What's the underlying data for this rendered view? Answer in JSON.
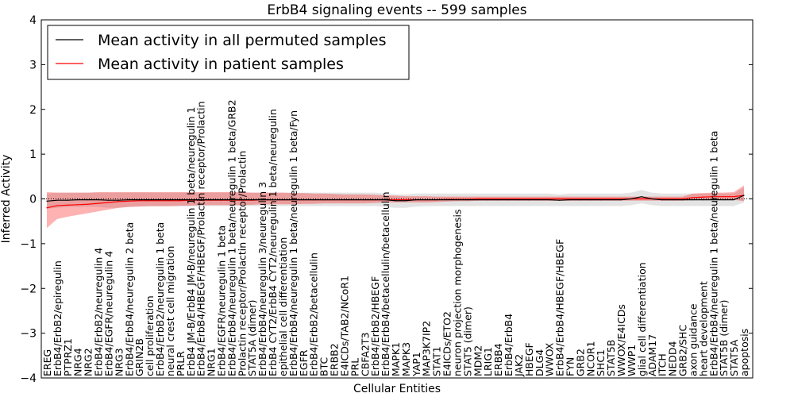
{
  "chart_data": {
    "type": "line",
    "title": "ErbB4 signaling events -- 599 samples",
    "xlabel": "Cellular Entities",
    "ylabel": "Inferred Activity",
    "ylim": [
      -4,
      4
    ],
    "yticks": [
      -4,
      -3,
      -2,
      -1,
      0,
      1,
      2,
      3,
      4
    ],
    "legend_position": "top-left",
    "categories": [
      "EREG",
      "ErbB4/ErbB2/epiregulin",
      "PTPRZ1",
      "NRG4",
      "NRG2",
      "ErbB4/ErbB2/neuregulin 4",
      "ErbB4/EGFR/neuregulin 4",
      "NRG3",
      "ErbB4/ErbB4/neuregulin 2 beta",
      "GRIN2B",
      "cell proliferation",
      "ErbB4/ErbB2/neuregulin 1 beta",
      "neural crest cell migration",
      "PRLR",
      "ErbB4 JM-B/ErbB4 JM-B/neuregulin 1 beta/neuregulin 1",
      "ErbB4/ErbB4/HBEGF/HBEGF/Prolactin receptor/Prolactin",
      "NRG1",
      "ErbB4/EGFR/neuregulin 1 beta",
      "ErbB4/ErbB4/neuregulin 1 beta/neuregulin 1 beta/GRB2",
      "Prolactin receptor/Prolactin receptor/Prolactin",
      "STAT5A (dimer)",
      "ErbB4/ErbB4/neuregulin 3/neuregulin 3",
      "ErbB4 CYT2/ErbB4 CYT2/neuregulin 1 beta/neuregulin",
      "epithelial cell differentiation",
      "ErbB4/ErbB4/neuregulin 1 beta/neuregulin 1 beta/Fyn",
      "EGFR",
      "ErbB4/ErbB2/betacellulin",
      "BTC",
      "ERBB2",
      "E4ICDs/TAB2/NCoR1",
      "PRL",
      "CBFA2T3",
      "ErbB4/ErbB2/HBEGF",
      "ErbB4/ErbB4/betacellulin/betacellulin",
      "MAPK1",
      "MAPK3",
      "YAP1",
      "MAP3K7IP2",
      "STAT1",
      "E4ICDs/ETO2",
      "neuron projection morphogenesis",
      "STAT5 (dimer)",
      "MDM2",
      "LRIG1",
      "ERBB4",
      "ErbB4/ErbB4",
      "JAK2",
      "HBEGF",
      "DLG4",
      "WWOX",
      "ErbB4/ErbB4/HBEGF/HBEGF",
      "FYN",
      "GRB2",
      "NCOR1",
      "SHC1",
      "STAT5B",
      "WWOX/E4ICDs",
      "WWP1",
      "glial cell differentiation",
      "ADAM17",
      "ITCH",
      "NEDD4",
      "GRB2/SHC",
      "axon guidance",
      "heart development",
      "ErbB4/ErbB4/neuregulin 1 beta/neuregulin 1 beta",
      "STAT5B (dimer)",
      "STAT5A",
      "apoptosis"
    ],
    "series": [
      {
        "name": "Mean activity in all permuted samples",
        "color": "#000000",
        "values": [
          -0.05,
          -0.03,
          -0.03,
          -0.02,
          -0.02,
          -0.02,
          -0.03,
          -0.03,
          -0.02,
          -0.02,
          -0.02,
          -0.02,
          -0.02,
          -0.02,
          -0.02,
          -0.02,
          -0.02,
          -0.02,
          -0.02,
          -0.02,
          -0.02,
          -0.02,
          -0.02,
          -0.02,
          -0.02,
          -0.02,
          -0.02,
          -0.02,
          -0.02,
          -0.02,
          -0.02,
          -0.02,
          -0.02,
          -0.02,
          -0.04,
          -0.04,
          -0.02,
          -0.02,
          -0.02,
          -0.02,
          -0.02,
          -0.02,
          -0.02,
          -0.02,
          -0.02,
          -0.02,
          -0.02,
          -0.02,
          -0.02,
          -0.02,
          -0.03,
          -0.02,
          -0.02,
          -0.02,
          -0.02,
          -0.02,
          -0.02,
          0.0,
          0.05,
          0.0,
          -0.02,
          -0.02,
          -0.02,
          -0.02,
          -0.02,
          -0.02,
          -0.02,
          -0.02,
          0.08
        ],
        "lower": [
          -0.22,
          -0.2,
          -0.18,
          -0.18,
          -0.17,
          -0.18,
          -0.2,
          -0.2,
          -0.18,
          -0.17,
          -0.17,
          -0.17,
          -0.17,
          -0.17,
          -0.17,
          -0.17,
          -0.16,
          -0.16,
          -0.16,
          -0.16,
          -0.16,
          -0.16,
          -0.16,
          -0.16,
          -0.16,
          -0.16,
          -0.16,
          -0.16,
          -0.16,
          -0.16,
          -0.16,
          -0.16,
          -0.16,
          -0.18,
          -0.2,
          -0.2,
          -0.17,
          -0.16,
          -0.16,
          -0.16,
          -0.16,
          -0.16,
          -0.16,
          -0.16,
          -0.16,
          -0.16,
          -0.16,
          -0.16,
          -0.16,
          -0.16,
          -0.16,
          -0.16,
          -0.16,
          -0.16,
          -0.16,
          -0.16,
          -0.16,
          -0.14,
          -0.1,
          -0.14,
          -0.16,
          -0.16,
          -0.16,
          -0.16,
          -0.16,
          -0.16,
          -0.16,
          -0.16,
          -0.08
        ],
        "upper": [
          0.12,
          0.14,
          0.14,
          0.14,
          0.14,
          0.14,
          0.14,
          0.14,
          0.14,
          0.14,
          0.14,
          0.14,
          0.14,
          0.14,
          0.14,
          0.14,
          0.14,
          0.14,
          0.14,
          0.14,
          0.14,
          0.14,
          0.14,
          0.14,
          0.14,
          0.14,
          0.14,
          0.14,
          0.14,
          0.14,
          0.14,
          0.14,
          0.14,
          0.12,
          0.1,
          0.1,
          0.12,
          0.12,
          0.12,
          0.12,
          0.12,
          0.12,
          0.12,
          0.12,
          0.12,
          0.12,
          0.12,
          0.12,
          0.12,
          0.12,
          0.1,
          0.12,
          0.12,
          0.12,
          0.12,
          0.12,
          0.12,
          0.14,
          0.2,
          0.14,
          0.12,
          0.12,
          0.12,
          0.12,
          0.12,
          0.12,
          0.12,
          0.12,
          0.25
        ]
      },
      {
        "name": "Mean activity in patient samples",
        "color": "#ff0000",
        "values": [
          -0.2,
          -0.15,
          -0.14,
          -0.13,
          -0.12,
          -0.1,
          -0.08,
          -0.06,
          -0.05,
          -0.04,
          -0.04,
          -0.04,
          -0.04,
          -0.04,
          -0.03,
          -0.03,
          -0.03,
          -0.03,
          -0.03,
          -0.03,
          -0.03,
          -0.02,
          -0.02,
          -0.02,
          -0.02,
          -0.02,
          -0.02,
          -0.02,
          -0.02,
          -0.02,
          -0.02,
          -0.02,
          -0.02,
          -0.02,
          -0.02,
          -0.02,
          -0.02,
          -0.02,
          -0.02,
          -0.01,
          -0.01,
          -0.01,
          0.0,
          0.0,
          0.0,
          0.0,
          0.0,
          0.0,
          0.0,
          0.0,
          0.0,
          0.0,
          0.0,
          0.0,
          0.0,
          0.0,
          0.0,
          0.0,
          0.0,
          0.0,
          0.0,
          0.0,
          0.0,
          0.03,
          0.04,
          0.05,
          0.05,
          0.05,
          0.08
        ],
        "lower": [
          -0.65,
          -0.45,
          -0.4,
          -0.36,
          -0.32,
          -0.28,
          -0.24,
          -0.2,
          -0.18,
          -0.17,
          -0.16,
          -0.16,
          -0.16,
          -0.15,
          -0.15,
          -0.14,
          -0.14,
          -0.14,
          -0.14,
          -0.14,
          -0.13,
          -0.12,
          -0.12,
          -0.12,
          -0.12,
          -0.11,
          -0.11,
          -0.1,
          -0.1,
          -0.1,
          -0.1,
          -0.1,
          -0.09,
          -0.08,
          -0.08,
          -0.08,
          -0.08,
          -0.08,
          -0.07,
          -0.06,
          -0.05,
          -0.05,
          -0.04,
          -0.04,
          -0.04,
          -0.04,
          -0.04,
          -0.04,
          -0.04,
          -0.04,
          -0.04,
          -0.04,
          -0.04,
          -0.04,
          -0.04,
          -0.04,
          -0.04,
          -0.04,
          -0.04,
          -0.04,
          -0.04,
          -0.04,
          -0.04,
          -0.02,
          -0.02,
          -0.02,
          -0.02,
          -0.02,
          -0.05
        ],
        "upper": [
          0.15,
          0.14,
          0.14,
          0.14,
          0.14,
          0.15,
          0.15,
          0.15,
          0.15,
          0.15,
          0.15,
          0.15,
          0.15,
          0.15,
          0.15,
          0.15,
          0.15,
          0.15,
          0.15,
          0.15,
          0.14,
          0.14,
          0.14,
          0.14,
          0.13,
          0.13,
          0.12,
          0.12,
          0.11,
          0.1,
          0.1,
          0.1,
          0.09,
          0.08,
          0.07,
          0.06,
          0.06,
          0.06,
          0.05,
          0.05,
          0.05,
          0.05,
          0.05,
          0.05,
          0.05,
          0.05,
          0.05,
          0.05,
          0.05,
          0.05,
          0.05,
          0.05,
          0.05,
          0.05,
          0.05,
          0.05,
          0.05,
          0.05,
          0.05,
          0.05,
          0.05,
          0.05,
          0.05,
          0.12,
          0.13,
          0.14,
          0.14,
          0.15,
          0.3
        ]
      }
    ]
  }
}
